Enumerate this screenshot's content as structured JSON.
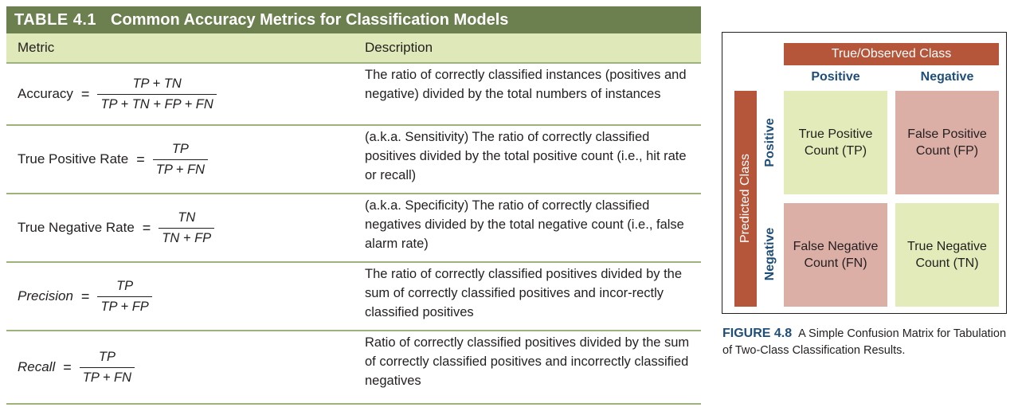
{
  "table": {
    "number": "TABLE 4.1",
    "title": "Common Accuracy Metrics for Classification Models",
    "headers": {
      "metric": "Metric",
      "description": "Description"
    },
    "rows": [
      {
        "name": "Accuracy",
        "numerator": "TP + TN",
        "denominator": "TP + TN + FP + FN",
        "description": "The ratio of correctly classified instances (positives and negative) divided by the total numbers of instances"
      },
      {
        "name": "True Positive Rate",
        "numerator": "TP",
        "denominator": "TP + FN",
        "description": "(a.k.a. Sensitivity) The ratio of correctly classified positives divided by the total positive count (i.e., hit rate or recall)"
      },
      {
        "name": "True Negative Rate",
        "numerator": "TN",
        "denominator": "TN + FP",
        "description": "(a.k.a. Specificity) The ratio of correctly classified negatives divided by the total negative count (i.e., false alarm rate)"
      },
      {
        "name": "Precision",
        "numerator": "TP",
        "denominator": "TP + FP",
        "description": "The ratio of correctly classified positives divided by the sum of correctly classified positives and incor-rectly classified positives"
      },
      {
        "name": "Recall",
        "numerator": "TP",
        "denominator": "TP + FN",
        "description": "Ratio of correctly classified positives divided by the sum of correctly classified positives and incorrectly classified negatives"
      }
    ],
    "equals": "="
  },
  "figure": {
    "true_class_label": "True/Observed Class",
    "predicted_class_label": "Predicted Class",
    "col_positive": "Positive",
    "col_negative": "Negative",
    "row_positive": "Positive",
    "row_negative": "Negative",
    "cells": {
      "tp": "True Positive Count (TP)",
      "fp": "False Positive Count (FP)",
      "fn": "False Negative Count (FN)",
      "tn": "True Negative Count (TN)"
    },
    "caption_number": "FIGURE 4.8",
    "caption_text": "A Simple Confusion Matrix for Tabulation of Two-Class Classification Results."
  },
  "colors": {
    "table_title_bg": "#6b7f4f",
    "table_header_bg": "#dfe8b8",
    "rule": "#9db27c",
    "label_bar": "#b5553a",
    "axis_text": "#1f4e79",
    "cell_correct": "#e2ebb9",
    "cell_error": "#dbaea6"
  }
}
